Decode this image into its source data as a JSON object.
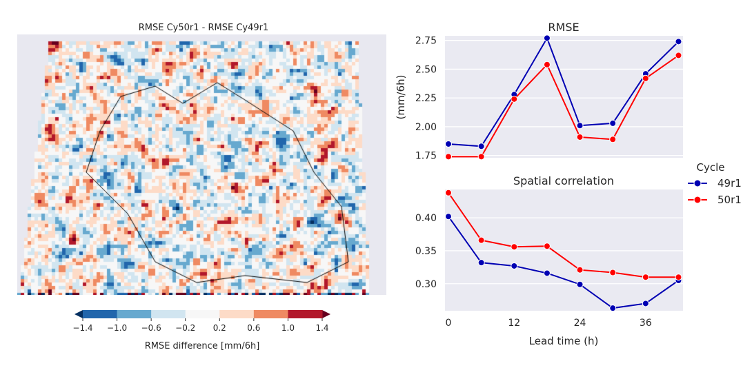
{
  "chart_data": [
    {
      "type": "heatmap",
      "title": "RMSE Cy50r1 - RMSE Cy49r1",
      "colorbar": {
        "label": "RMSE difference [mm/6h]",
        "ticks": [
          "−1.4",
          "−1.0",
          "−0.6",
          "−0.2",
          "0.2",
          "0.6",
          "1.0",
          "1.4"
        ],
        "bounds": [
          -1.4,
          -1.0,
          -0.6,
          -0.2,
          0.2,
          0.6,
          1.0,
          1.4
        ],
        "colors": [
          "#2166ac",
          "#67a9cf",
          "#d1e5f0",
          "#f7f7f7",
          "#fddbc7",
          "#ef8a62",
          "#b2182b"
        ],
        "extend_colors": [
          "#053061",
          "#67001f"
        ]
      },
      "background": "#e8e8f0"
    },
    {
      "type": "line",
      "title": "RMSE",
      "xlabel": "",
      "ylabel": "(mm/6h)",
      "x": [
        0,
        6,
        12,
        18,
        24,
        30,
        36,
        42
      ],
      "ylim": [
        1.73,
        2.79
      ],
      "yticks": [
        "1.75",
        "2.00",
        "2.25",
        "2.50",
        "2.75"
      ],
      "grid": true,
      "series": [
        {
          "name": "49r1",
          "color": "#0000b3",
          "values": [
            1.85,
            1.83,
            2.28,
            2.77,
            2.01,
            2.03,
            2.46,
            2.74
          ]
        },
        {
          "name": "50r1",
          "color": "#ff0000",
          "values": [
            1.74,
            1.74,
            2.24,
            2.54,
            1.91,
            1.89,
            2.42,
            2.62
          ]
        }
      ]
    },
    {
      "type": "line",
      "title": "Spatial correlation",
      "xlabel": "Lead time (h)",
      "ylabel": "",
      "x": [
        0,
        6,
        12,
        18,
        24,
        30,
        36,
        42
      ],
      "xticks": [
        "0",
        "12",
        "24",
        "36"
      ],
      "ylim": [
        0.259,
        0.443
      ],
      "yticks": [
        "0.30",
        "0.35",
        "0.40"
      ],
      "grid": true,
      "series": [
        {
          "name": "49r1",
          "color": "#0000b3",
          "values": [
            0.402,
            0.332,
            0.327,
            0.316,
            0.299,
            0.263,
            0.27,
            0.305
          ]
        },
        {
          "name": "50r1",
          "color": "#ff0000",
          "values": [
            0.438,
            0.366,
            0.356,
            0.357,
            0.321,
            0.317,
            0.31,
            0.31
          ]
        }
      ]
    }
  ],
  "legend": {
    "title": "Cycle",
    "entries": [
      "49r1",
      "50r1"
    ],
    "placement": "right"
  }
}
